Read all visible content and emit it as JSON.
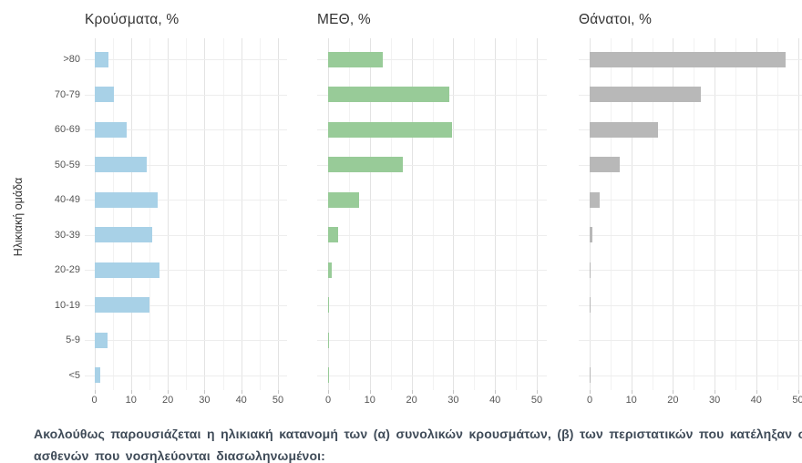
{
  "y_axis_title": "Ηλικιακή ομάδα",
  "x_ticks": [
    0,
    10,
    20,
    30,
    40,
    50
  ],
  "chart_data": {
    "type": "bar",
    "orientation": "horizontal",
    "categories": [
      ">80",
      "70-79",
      "60-69",
      "50-59",
      "40-49",
      "30-39",
      "20-29",
      "10-19",
      "5-9",
      "<5"
    ],
    "series": [
      {
        "name": "Κρούσματα, %",
        "color": "#a8d1e7",
        "values": [
          3.8,
          5.3,
          8.8,
          14.3,
          17.2,
          15.7,
          17.7,
          15.0,
          3.6,
          1.7
        ]
      },
      {
        "name": "ΜΕΘ, %",
        "color": "#98cb98",
        "values": [
          13.1,
          29.1,
          29.6,
          18.0,
          7.4,
          2.4,
          0.9,
          0.2,
          0.2,
          0.2
        ]
      },
      {
        "name": "Θάνατοι, %",
        "color": "#b8b8b8",
        "values": [
          47.0,
          26.7,
          16.5,
          7.3,
          2.3,
          0.6,
          0.2,
          0.2,
          0,
          0.2
        ]
      }
    ],
    "xlabel": "",
    "ylabel": "Ηλικιακή ομάδα",
    "xlim": [
      0,
      50
    ],
    "grid": true,
    "legend": "none"
  },
  "caption": {
    "line1": "Ακολούθως παρουσιάζεται η ηλικιακή κατανομή των (α) συνολικών κρουσμάτων, (β) των περιστατικών που κατέληξαν σε θάνατο και (γ) των",
    "line2": "ασθενών που νοσηλεύονται διασωληνωμένοι:"
  }
}
